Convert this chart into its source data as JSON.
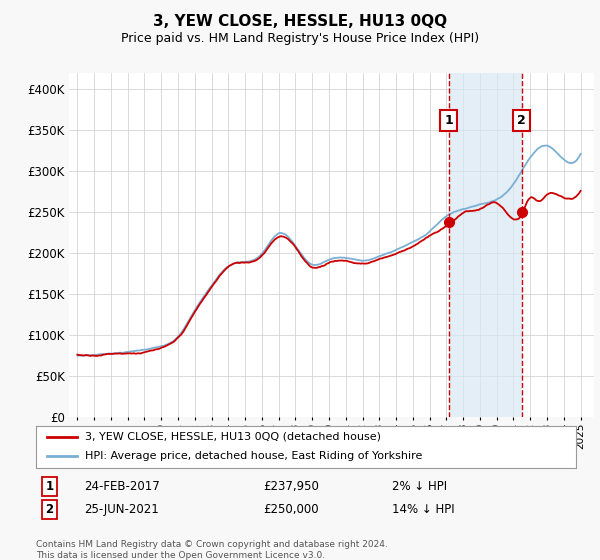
{
  "title": "3, YEW CLOSE, HESSLE, HU13 0QQ",
  "subtitle": "Price paid vs. HM Land Registry's House Price Index (HPI)",
  "legend_line1": "3, YEW CLOSE, HESSLE, HU13 0QQ (detached house)",
  "legend_line2": "HPI: Average price, detached house, East Riding of Yorkshire",
  "annotation1_date": "24-FEB-2017",
  "annotation1_price": "£237,950",
  "annotation1_hpi": "2% ↓ HPI",
  "annotation2_date": "25-JUN-2021",
  "annotation2_price": "£250,000",
  "annotation2_hpi": "14% ↓ HPI",
  "footnote": "Contains HM Land Registry data © Crown copyright and database right 2024.\nThis data is licensed under the Open Government Licence v3.0.",
  "sale1_year": 2017.13,
  "sale1_price": 237950,
  "sale2_year": 2021.48,
  "sale2_price": 250000,
  "hpi_color": "#7bafd4",
  "price_color": "#cc0000",
  "marker_box_color": "#cc0000",
  "shade_color": "#d8e8f5",
  "background_color": "#f8f8f8",
  "plot_bg_color": "#ffffff",
  "grid_color": "#cccccc",
  "ylim_min": 0,
  "ylim_max": 420000,
  "yticks": [
    0,
    50000,
    100000,
    150000,
    200000,
    250000,
    300000,
    350000,
    400000
  ],
  "xlim_min": 1994.5,
  "xlim_max": 2025.8,
  "xticks": [
    1995,
    1996,
    1997,
    1998,
    1999,
    2000,
    2001,
    2002,
    2003,
    2004,
    2005,
    2006,
    2007,
    2008,
    2009,
    2010,
    2011,
    2012,
    2013,
    2014,
    2015,
    2016,
    2017,
    2018,
    2019,
    2020,
    2021,
    2022,
    2023,
    2024,
    2025
  ]
}
